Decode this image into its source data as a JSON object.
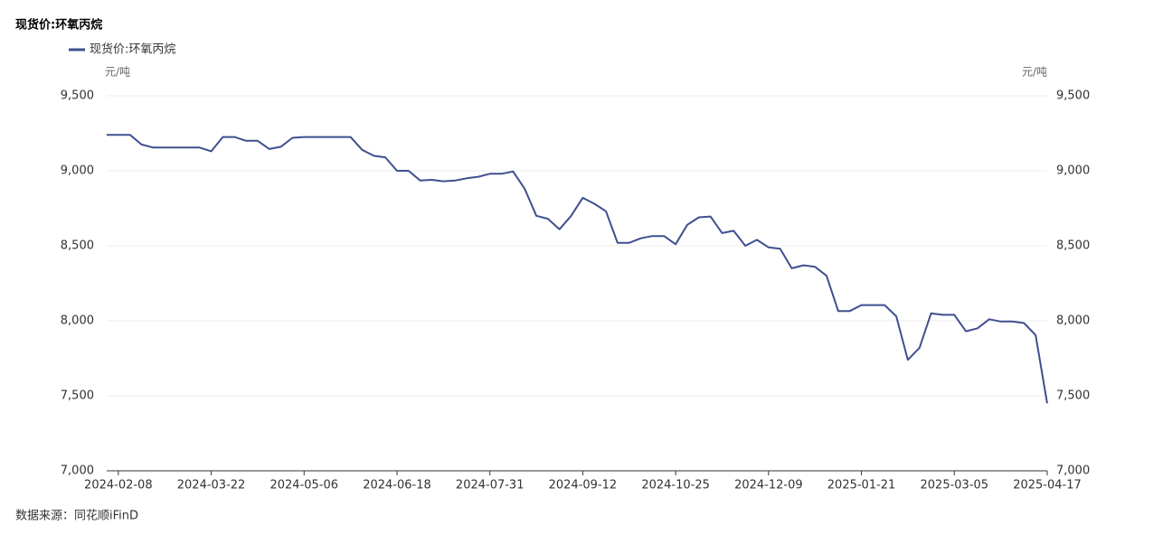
{
  "chart_data": {
    "type": "line",
    "title": "现货价:环氧丙烷",
    "y_unit": "元/吨",
    "y2_unit": "元/吨",
    "source": "数据来源：同花顺iFinD",
    "categories": [
      null,
      "2024-02-08",
      null,
      null,
      null,
      null,
      null,
      null,
      null,
      "2024-03-22",
      null,
      null,
      null,
      null,
      null,
      null,
      null,
      "2024-05-06",
      null,
      null,
      null,
      null,
      null,
      null,
      null,
      "2024-06-18",
      null,
      null,
      null,
      null,
      null,
      null,
      null,
      "2024-07-31",
      null,
      null,
      null,
      null,
      null,
      null,
      null,
      "2024-09-12",
      null,
      null,
      null,
      null,
      null,
      null,
      null,
      "2024-10-25",
      null,
      null,
      null,
      null,
      null,
      null,
      null,
      "2024-12-09",
      null,
      null,
      null,
      null,
      null,
      null,
      null,
      "2025-01-21",
      null,
      null,
      null,
      null,
      null,
      null,
      null,
      "2025-03-05",
      null,
      null,
      null,
      null,
      null,
      null,
      null,
      "2025-04-17"
    ],
    "series": [
      {
        "name": "现货价:环氧丙烷",
        "color": "#3f4f8f",
        "values": [
          9240,
          9240,
          9240,
          9175,
          9155,
          9155,
          9155,
          9155,
          9155,
          9130,
          9225,
          9225,
          9200,
          9200,
          9145,
          9160,
          9220,
          9225,
          9225,
          9225,
          9225,
          9225,
          9140,
          9100,
          9090,
          9000,
          9000,
          8935,
          8940,
          8930,
          8935,
          8950,
          8960,
          8980,
          8980,
          8995,
          8880,
          8700,
          8680,
          8610,
          8700,
          8820,
          8780,
          8730,
          8520,
          8520,
          8550,
          8565,
          8565,
          8510,
          8640,
          8690,
          8695,
          8585,
          8600,
          8500,
          8540,
          8490,
          8480,
          8350,
          8370,
          8360,
          8300,
          8065,
          8065,
          8105,
          8105,
          8105,
          8030,
          7740,
          7820,
          8050,
          8040,
          8040,
          7930,
          7950,
          8010,
          7995,
          7995,
          7985,
          7905,
          7450
        ]
      }
    ],
    "ylim": [
      7000,
      9500
    ],
    "yticks": [
      {
        "value": 7000,
        "label": "7,000"
      },
      {
        "value": 7500,
        "label": "7,500"
      },
      {
        "value": 8000,
        "label": "8,000"
      },
      {
        "value": 8500,
        "label": "8,500"
      },
      {
        "value": 9000,
        "label": "9,000"
      },
      {
        "value": 9500,
        "label": "9,500"
      }
    ],
    "y2lim": [
      7000,
      9500
    ],
    "y2ticks": [
      {
        "value": 7000,
        "label": "7,000"
      },
      {
        "value": 7500,
        "label": "7,500"
      },
      {
        "value": 8000,
        "label": "8,000"
      },
      {
        "value": 8500,
        "label": "8,500"
      },
      {
        "value": 9000,
        "label": "9,000"
      },
      {
        "value": 9500,
        "label": "9,500"
      }
    ],
    "grid": true
  }
}
